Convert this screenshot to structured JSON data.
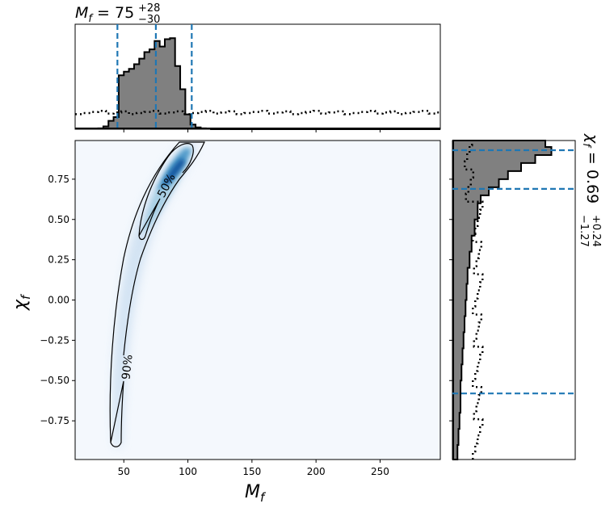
{
  "chart_data": {
    "type": "corner",
    "top_title": {
      "base": "M",
      "sub": "f",
      "eq": " = 75",
      "sup": "+28",
      "low": "−30"
    },
    "right_title": {
      "base": "χ",
      "sub": "f",
      "eq": " = 0.69",
      "sup": "+0.24",
      "low": "−1.27"
    },
    "xlabel": {
      "base": "M",
      "sub": "f"
    },
    "ylabel": {
      "base": "χ",
      "sub": "f"
    },
    "xlim": [
      12,
      297
    ],
    "ylim": [
      -0.99,
      0.99
    ],
    "x_ticks": [
      50,
      100,
      150,
      200,
      250
    ],
    "x_tick_labels": [
      "50",
      "100",
      "150",
      "200",
      "250"
    ],
    "y_ticks": [
      0.75,
      0.5,
      0.25,
      0.0,
      -0.25,
      -0.5,
      -0.75
    ],
    "y_tick_labels": [
      "0.75",
      "0.50",
      "0.25",
      "0.00",
      "−0.25",
      "−0.50",
      "−0.75"
    ],
    "contour_labels": [
      "50%",
      "90%"
    ],
    "mass_histogram": {
      "bin_edges": [
        30,
        34,
        38,
        42,
        46,
        50,
        54,
        58,
        62,
        66,
        70,
        74,
        78,
        82,
        86,
        90,
        94,
        98,
        102,
        106,
        110,
        114,
        118
      ],
      "counts": [
        0.01,
        0.03,
        0.09,
        0.13,
        0.58,
        0.62,
        0.65,
        0.7,
        0.76,
        0.83,
        0.86,
        0.95,
        0.89,
        0.97,
        0.98,
        0.68,
        0.43,
        0.16,
        0.05,
        0.02,
        0.01,
        0.005
      ],
      "prior_level": 0.18,
      "quantile_lines": [
        45,
        75,
        103
      ]
    },
    "spin_histogram": {
      "bin_edges": [
        -0.99,
        -0.9,
        -0.8,
        -0.7,
        -0.6,
        -0.5,
        -0.4,
        -0.3,
        -0.2,
        -0.1,
        0.0,
        0.1,
        0.2,
        0.3,
        0.4,
        0.5,
        0.6,
        0.65,
        0.7,
        0.75,
        0.8,
        0.85,
        0.9,
        0.95,
        0.99
      ],
      "counts": [
        0.05,
        0.06,
        0.07,
        0.08,
        0.08,
        0.09,
        0.1,
        0.11,
        0.12,
        0.13,
        0.14,
        0.15,
        0.17,
        0.19,
        0.22,
        0.25,
        0.28,
        0.36,
        0.46,
        0.55,
        0.68,
        0.82,
        0.98,
        0.92
      ],
      "prior_level": 0.25,
      "quantile_lines": [
        -0.58,
        0.69,
        0.93
      ]
    },
    "colors": {
      "hist_fill": "#808080",
      "hist_edge": "#000000",
      "quantile_line": "#1f77b4",
      "density_low": "#f7fbff",
      "density_high": "#08306b",
      "contour": "#000000"
    }
  }
}
